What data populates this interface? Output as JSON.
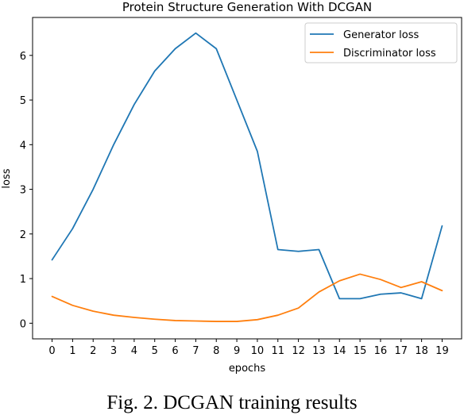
{
  "chart_data": {
    "type": "line",
    "title": "Protein Structure Generation With DCGAN",
    "xlabel": "epochs",
    "ylabel": "loss",
    "x": [
      0,
      1,
      2,
      3,
      4,
      5,
      6,
      7,
      8,
      9,
      10,
      11,
      12,
      13,
      14,
      15,
      16,
      17,
      18,
      19
    ],
    "xlim": [
      -0.95,
      19.95
    ],
    "ylim": [
      -0.35,
      6.85
    ],
    "yticks": [
      0,
      1,
      2,
      3,
      4,
      5,
      6
    ],
    "series": [
      {
        "name": "Generator loss",
        "color": "#1f77b4",
        "values": [
          1.42,
          2.12,
          3.0,
          4.0,
          4.9,
          5.65,
          6.15,
          6.5,
          6.15,
          5.0,
          3.85,
          1.65,
          1.61,
          1.65,
          0.55,
          0.55,
          0.65,
          0.68,
          0.55,
          2.18
        ]
      },
      {
        "name": "Discriminator loss",
        "color": "#ff7f0e",
        "values": [
          0.6,
          0.4,
          0.27,
          0.18,
          0.13,
          0.09,
          0.06,
          0.05,
          0.04,
          0.04,
          0.08,
          0.18,
          0.34,
          0.7,
          0.95,
          1.1,
          0.98,
          0.8,
          0.93,
          0.73
        ]
      }
    ],
    "legend": "top-right",
    "grid": false
  },
  "caption": "Fig. 2. DCGAN training results"
}
